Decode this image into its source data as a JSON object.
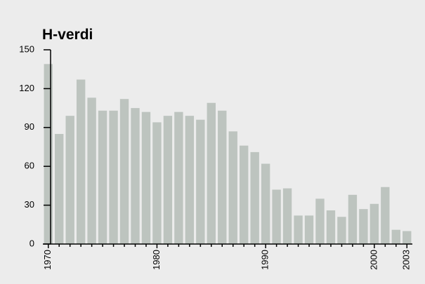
{
  "chart_data": {
    "type": "bar",
    "title": "H-verdi",
    "categories": [
      "1970",
      null,
      null,
      null,
      null,
      null,
      null,
      null,
      null,
      null,
      "1980",
      null,
      null,
      null,
      null,
      null,
      null,
      null,
      null,
      null,
      "1990",
      null,
      null,
      null,
      null,
      null,
      null,
      null,
      null,
      null,
      "2000",
      null,
      null,
      "2003"
    ],
    "values": [
      139,
      85,
      99,
      127,
      113,
      103,
      103,
      112,
      105,
      102,
      94,
      99,
      102,
      99,
      96,
      109,
      103,
      87,
      76,
      71,
      62,
      42,
      43,
      22,
      22,
      35,
      26,
      21,
      38,
      27,
      31,
      44,
      11,
      10
    ],
    "color": "#bdc4bf",
    "ylim": [
      0,
      150
    ],
    "yticks": [
      0,
      30,
      60,
      90,
      120,
      150
    ],
    "grid": false
  }
}
